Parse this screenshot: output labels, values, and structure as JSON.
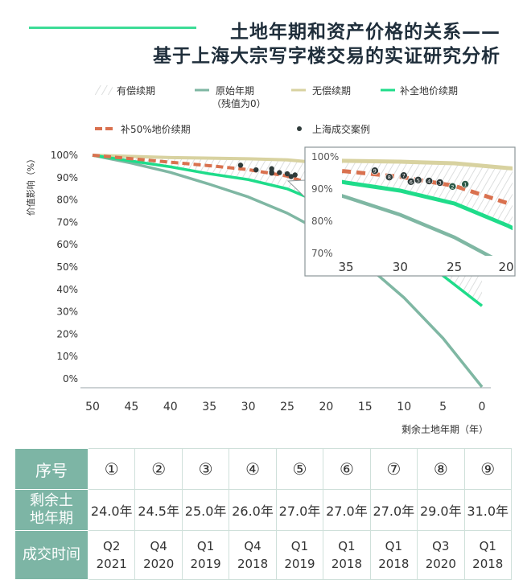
{
  "header": {
    "title_line1": "土地年期和资产价格的关系——",
    "title_line2": "基于上海大宗写字楼交易的实证研究分析"
  },
  "colors": {
    "original": "#7fb7a3",
    "free_renewal": "#d8d2a0",
    "full_premium": "#1fdc8a",
    "half_premium": "#d9714f",
    "cases": "#2f3b3a",
    "table_header": "#7db5a5",
    "accent_line": "#3ddc97"
  },
  "chart_data": {
    "type": "line",
    "xlabel": "剩余土地年期（年）",
    "ylabel": "价值影响（%）",
    "xlim": [
      50,
      0
    ],
    "ylim": [
      0,
      100
    ],
    "x_ticks": [
      "50",
      "45",
      "40",
      "35",
      "30",
      "25",
      "20",
      "15",
      "10",
      "5",
      "0"
    ],
    "y_ticks": [
      "100%",
      "90%",
      "80%",
      "70%",
      "60%",
      "50%",
      "40%",
      "30%",
      "20%",
      "10%",
      "0%"
    ],
    "legend": {
      "paid_renewal": "有偿续期",
      "original": "原始年期",
      "original_note": "（残值为0）",
      "free_renewal": "无偿续期",
      "full_premium": "补全地价续期",
      "half_premium": "补50%地价续期",
      "cases": "上海成交案例"
    },
    "series": [
      {
        "name": "原始年期（残值为0）",
        "key": "original",
        "x": [
          50,
          45,
          40,
          35,
          30,
          25,
          20,
          15,
          10,
          5,
          0
        ],
        "y": [
          100,
          96.6,
          92.6,
          87.5,
          82,
          75,
          66,
          53,
          38.5,
          21,
          0
        ]
      },
      {
        "name": "无偿续期",
        "key": "free_renewal",
        "x": [
          50,
          40,
          30,
          25,
          20,
          10,
          0
        ],
        "y": [
          100,
          99,
          98.5,
          98,
          96.5,
          94,
          91
        ]
      },
      {
        "name": "补全地价续期",
        "key": "full_premium",
        "x": [
          50,
          40,
          35,
          30,
          25,
          20,
          15,
          10,
          5,
          0
        ],
        "y": [
          100,
          95,
          92,
          89.5,
          85.5,
          78.5,
          70,
          60,
          48,
          35
        ]
      },
      {
        "name": "补50%地价续期",
        "key": "half_premium",
        "x": [
          50,
          40,
          35,
          30,
          25,
          20
        ],
        "y": [
          100,
          97,
          95.5,
          93.8,
          91,
          85.5
        ]
      }
    ],
    "cases": [
      {
        "id": "1",
        "x": 24.0,
        "y": 91.5
      },
      {
        "id": "2",
        "x": 24.5,
        "y": 90.8
      },
      {
        "id": "3",
        "x": 25.0,
        "y": 92
      },
      {
        "id": "4",
        "x": 26.0,
        "y": 92.5
      },
      {
        "id": "5",
        "x": 27.0,
        "y": 92.8
      },
      {
        "id": "6",
        "x": 27.0,
        "y": 92.3
      },
      {
        "id": "7",
        "x": 27.0,
        "y": 94.2
      },
      {
        "id": "8",
        "x": 29.0,
        "y": 93.7
      },
      {
        "id": "9",
        "x": 31.0,
        "y": 95.7
      }
    ],
    "inset": {
      "xlim": [
        36.5,
        20
      ],
      "ylim": [
        67,
        101
      ],
      "x_ticks": [
        "35",
        "30",
        "25",
        "20"
      ],
      "y_ticks": [
        "100%",
        "90%",
        "80%",
        "70%"
      ]
    }
  },
  "table": {
    "row_headers": [
      "序号",
      "剩余土地年期",
      "成交时间"
    ],
    "row_header_lines": [
      [
        "序号"
      ],
      [
        "剩余土",
        "地年期"
      ],
      [
        "成交时间"
      ]
    ],
    "ids": [
      "①",
      "②",
      "③",
      "④",
      "⑤",
      "⑥",
      "⑦",
      "⑧",
      "⑨"
    ],
    "years": [
      "24.0年",
      "24.5年",
      "25.0年",
      "26.0年",
      "27.0年",
      "27.0年",
      "27.0年",
      "29.0年",
      "31.0年"
    ],
    "quarters": [
      "Q2",
      "Q4",
      "Q1",
      "Q4",
      "Q1",
      "Q1",
      "Q1",
      "Q3",
      "Q1"
    ],
    "deal_years": [
      "2021",
      "2020",
      "2019",
      "2018",
      "2019",
      "2018",
      "2018",
      "2020",
      "2018"
    ]
  }
}
